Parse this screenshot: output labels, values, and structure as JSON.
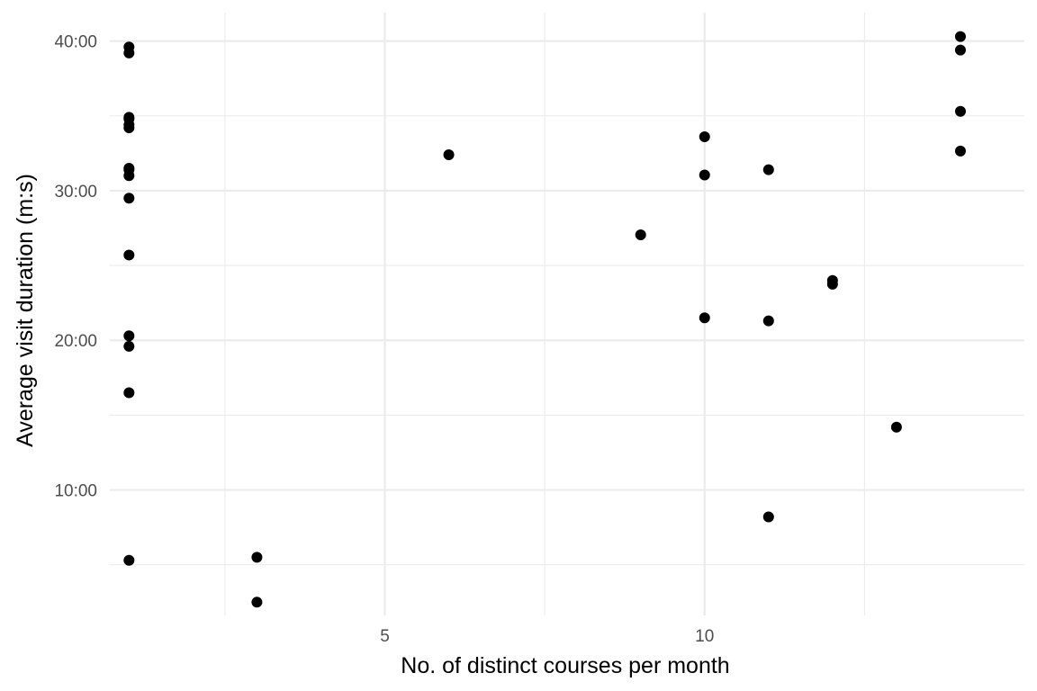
{
  "chart_data": {
    "type": "scatter",
    "xlabel": "No. of distinct courses per month",
    "ylabel": "Average visit duration (m:s)",
    "x_ticks": [
      {
        "value": 5,
        "label": "5"
      },
      {
        "value": 10,
        "label": "10"
      }
    ],
    "y_ticks": [
      {
        "value": 600,
        "label": "10:00"
      },
      {
        "value": 1200,
        "label": "20:00"
      },
      {
        "value": 1800,
        "label": "30:00"
      },
      {
        "value": 2400,
        "label": "40:00"
      }
    ],
    "xlim": [
      0.7,
      15.0
    ],
    "ylim": [
      97,
      2514
    ],
    "grid": true,
    "points": [
      {
        "x": 1,
        "y": 2376
      },
      {
        "x": 1,
        "y": 2352
      },
      {
        "x": 1,
        "y": 2094
      },
      {
        "x": 1,
        "y": 2088
      },
      {
        "x": 1,
        "y": 2064
      },
      {
        "x": 1,
        "y": 2052
      },
      {
        "x": 1,
        "y": 1890
      },
      {
        "x": 1,
        "y": 1884
      },
      {
        "x": 1,
        "y": 1860
      },
      {
        "x": 1,
        "y": 1770
      },
      {
        "x": 1,
        "y": 1542
      },
      {
        "x": 1,
        "y": 1218
      },
      {
        "x": 1,
        "y": 1176
      },
      {
        "x": 1,
        "y": 990
      },
      {
        "x": 1,
        "y": 318
      },
      {
        "x": 3,
        "y": 330
      },
      {
        "x": 3,
        "y": 150
      },
      {
        "x": 6,
        "y": 1944
      },
      {
        "x": 9,
        "y": 1623
      },
      {
        "x": 10,
        "y": 2016
      },
      {
        "x": 10,
        "y": 1863
      },
      {
        "x": 10,
        "y": 1290
      },
      {
        "x": 11,
        "y": 1884
      },
      {
        "x": 11,
        "y": 1278
      },
      {
        "x": 11,
        "y": 492
      },
      {
        "x": 12,
        "y": 1440
      },
      {
        "x": 12,
        "y": 1425
      },
      {
        "x": 13,
        "y": 852
      },
      {
        "x": 14,
        "y": 2418
      },
      {
        "x": 14,
        "y": 2364
      },
      {
        "x": 14,
        "y": 2118
      },
      {
        "x": 14,
        "y": 1959
      }
    ]
  }
}
